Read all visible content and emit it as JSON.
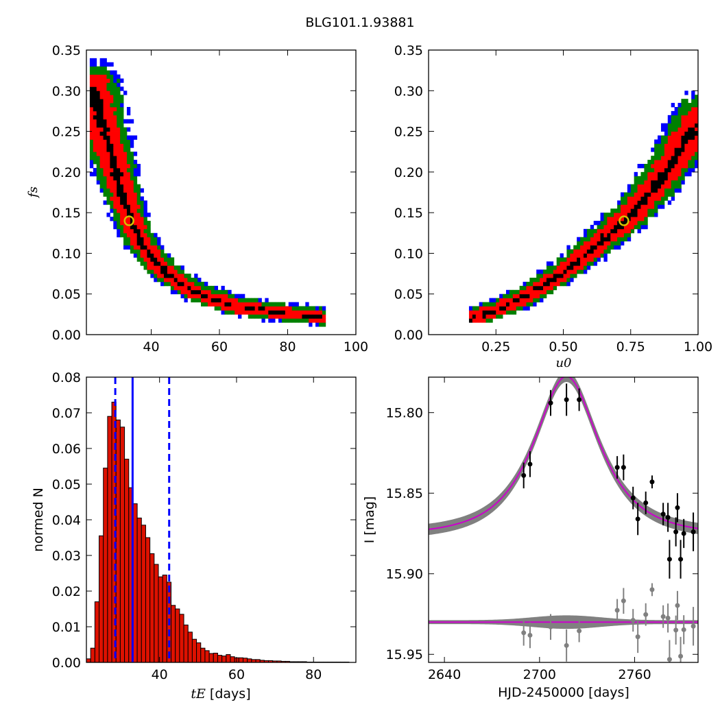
{
  "figure": {
    "title": "BLG101.1.93881"
  },
  "chart_data": [
    {
      "id": "panel-fs-tE",
      "type": "heatmap",
      "xlabel": "",
      "ylabel": "f_s",
      "xlim": [
        21,
        100
      ],
      "ylim": [
        0.0,
        0.35
      ],
      "xticks": [
        40,
        60,
        80,
        100
      ],
      "yticks": [
        0.0,
        0.05,
        0.1,
        0.15,
        0.2,
        0.25,
        0.3,
        0.35
      ],
      "ytick_labels": [
        "0.00",
        "0.05",
        "0.10",
        "0.15",
        "0.20",
        "0.25",
        "0.30",
        "0.35"
      ],
      "levels": [
        {
          "name": "outer",
          "color": "#0000ff"
        },
        {
          "name": "2-sigma",
          "color": "#008000"
        },
        {
          "name": "1-sigma",
          "color": "#ff0000"
        },
        {
          "name": "peak",
          "color": "#000000"
        }
      ],
      "ridge": [
        [
          23,
          0.3
        ],
        [
          25,
          0.27
        ],
        [
          27,
          0.24
        ],
        [
          29,
          0.21
        ],
        [
          31,
          0.18
        ],
        [
          33,
          0.155
        ],
        [
          35,
          0.13
        ],
        [
          37,
          0.115
        ],
        [
          40,
          0.095
        ],
        [
          44,
          0.078
        ],
        [
          48,
          0.065
        ],
        [
          53,
          0.052
        ],
        [
          58,
          0.044
        ],
        [
          64,
          0.036
        ],
        [
          72,
          0.03
        ],
        [
          80,
          0.026
        ],
        [
          91,
          0.021
        ]
      ],
      "best_fit": {
        "x": 33.5,
        "y": 0.14
      }
    },
    {
      "id": "panel-fs-u0",
      "type": "heatmap",
      "xlabel": "u_0",
      "ylabel": "",
      "xlim": [
        0.0,
        1.0
      ],
      "ylim": [
        0.0,
        0.35
      ],
      "xticks": [
        0.25,
        0.5,
        0.75,
        1.0
      ],
      "xtick_labels": [
        "0.25",
        "0.50",
        "0.75",
        "1.00"
      ],
      "yticks": [
        0.0,
        0.05,
        0.1,
        0.15,
        0.2,
        0.25,
        0.3,
        0.35
      ],
      "ytick_labels": [
        "0.00",
        "0.05",
        "0.10",
        "0.15",
        "0.20",
        "0.25",
        "0.30",
        "0.35"
      ],
      "levels": [
        {
          "name": "outer",
          "color": "#0000ff"
        },
        {
          "name": "2-sigma",
          "color": "#008000"
        },
        {
          "name": "1-sigma",
          "color": "#ff0000"
        },
        {
          "name": "peak",
          "color": "#000000"
        }
      ],
      "ridge": [
        [
          0.16,
          0.02
        ],
        [
          0.25,
          0.03
        ],
        [
          0.35,
          0.045
        ],
        [
          0.45,
          0.065
        ],
        [
          0.55,
          0.09
        ],
        [
          0.65,
          0.118
        ],
        [
          0.73,
          0.14
        ],
        [
          0.8,
          0.165
        ],
        [
          0.87,
          0.195
        ],
        [
          0.93,
          0.225
        ],
        [
          1.0,
          0.26
        ]
      ],
      "best_fit": {
        "x": 0.725,
        "y": 0.14
      }
    },
    {
      "id": "panel-tE-hist",
      "type": "bar",
      "xlabel": "t_E  [days]",
      "ylabel": "normed N",
      "xlim": [
        21,
        91
      ],
      "ylim": [
        0.0,
        0.08
      ],
      "xticks": [
        40,
        60,
        80
      ],
      "yticks": [
        0.0,
        0.01,
        0.02,
        0.03,
        0.04,
        0.05,
        0.06,
        0.07,
        0.08
      ],
      "ytick_labels": [
        "0.00",
        "0.01",
        "0.02",
        "0.03",
        "0.04",
        "0.05",
        "0.06",
        "0.07",
        "0.08"
      ],
      "bar_color": "#dd1100",
      "bin_start": 21,
      "bin_width": 1.1,
      "values": [
        0.001,
        0.004,
        0.017,
        0.0355,
        0.0545,
        0.069,
        0.073,
        0.068,
        0.066,
        0.057,
        0.049,
        0.0445,
        0.0405,
        0.0385,
        0.035,
        0.0305,
        0.0275,
        0.024,
        0.0245,
        0.0225,
        0.016,
        0.015,
        0.0135,
        0.0105,
        0.0085,
        0.0065,
        0.0055,
        0.004,
        0.0033,
        0.0025,
        0.0026,
        0.002,
        0.0018,
        0.0022,
        0.0016,
        0.0013,
        0.0013,
        0.0012,
        0.001,
        0.0008,
        0.0008,
        0.0006,
        0.0005,
        0.0005,
        0.0004,
        0.0004,
        0.0003,
        0.0003,
        0.0002,
        0.0002,
        0.0002,
        0.0002,
        0.0001,
        0.0001,
        0.0001,
        0.0001,
        0.0001,
        0.0001,
        0.0001,
        0.0001,
        0.0001,
        0.0001
      ],
      "median": 33.0,
      "lower": 28.5,
      "upper": 42.5,
      "line_color": "#0000ff"
    },
    {
      "id": "panel-lightcurve",
      "type": "scatter",
      "xlabel": "HJD-2450000 [days]",
      "ylabel": "I [mag]",
      "xlim": [
        2630,
        2800
      ],
      "ylim": [
        15.955,
        15.778
      ],
      "xticks": [
        2640,
        2700,
        2760
      ],
      "yticks": [
        15.8,
        15.85,
        15.9,
        15.95
      ],
      "ytick_labels": [
        "15.80",
        "15.85",
        "15.90",
        "15.95"
      ],
      "model": {
        "t0": 2717,
        "tE": 33,
        "u0": 0.725,
        "baseline": 15.876,
        "amplitude": 0.0985,
        "color": "#cc00cc",
        "band_color": "#808080"
      },
      "data_points": [
        {
          "t": 2690,
          "mag": 15.839,
          "err": 0.008
        },
        {
          "t": 2694,
          "mag": 15.832,
          "err": 0.008
        },
        {
          "t": 2707,
          "mag": 15.794,
          "err": 0.008
        },
        {
          "t": 2717,
          "mag": 15.792,
          "err": 0.01
        },
        {
          "t": 2725,
          "mag": 15.792,
          "err": 0.007
        },
        {
          "t": 2749,
          "mag": 15.834,
          "err": 0.007
        },
        {
          "t": 2753,
          "mag": 15.834,
          "err": 0.008
        },
        {
          "t": 2759,
          "mag": 15.853,
          "err": 0.007
        },
        {
          "t": 2762,
          "mag": 15.866,
          "err": 0.01
        },
        {
          "t": 2767,
          "mag": 15.856,
          "err": 0.007
        },
        {
          "t": 2771,
          "mag": 15.843,
          "err": 0.004
        },
        {
          "t": 2778,
          "mag": 15.863,
          "err": 0.007
        },
        {
          "t": 2781,
          "mag": 15.865,
          "err": 0.009
        },
        {
          "t": 2782,
          "mag": 15.891,
          "err": 0.012
        },
        {
          "t": 2786,
          "mag": 15.874,
          "err": 0.009
        },
        {
          "t": 2787,
          "mag": 15.859,
          "err": 0.009
        },
        {
          "t": 2789,
          "mag": 15.891,
          "err": 0.012
        },
        {
          "t": 2791,
          "mag": 15.875,
          "err": 0.009
        },
        {
          "t": 2797,
          "mag": 15.874,
          "err": 0.012
        },
        {
          "t": 2806,
          "mag": 15.867,
          "err": 0.007
        },
        {
          "t": 2808,
          "mag": 15.881,
          "err": 0.011
        },
        {
          "t": 2809,
          "mag": 15.869,
          "err": 0.009
        }
      ],
      "residual_offset": 15.93
    }
  ]
}
